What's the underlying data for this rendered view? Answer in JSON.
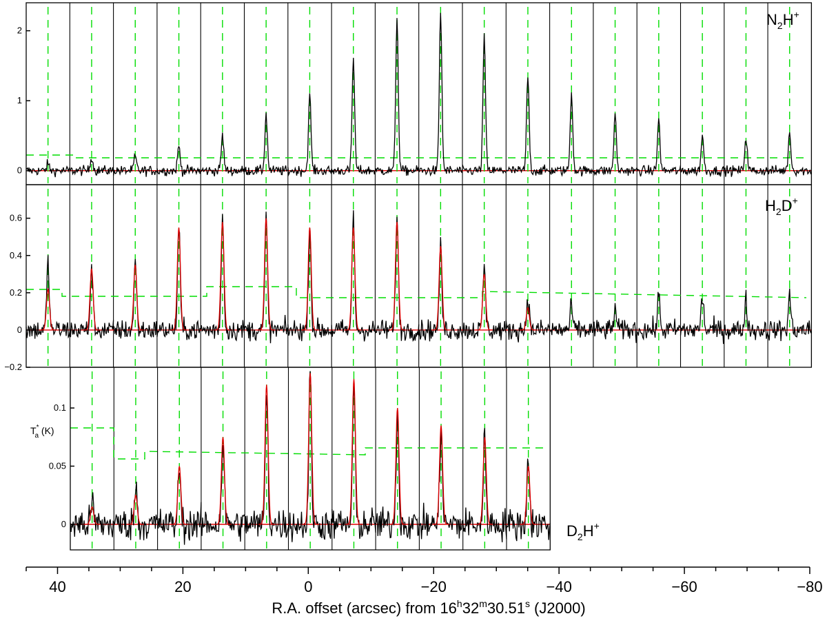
{
  "chart_data": {
    "type": "line",
    "title": "",
    "xlabel": {
      "prefix": "R.A. offset (arcsec) from 16",
      "h": "h",
      "n1": "32",
      "m": "m",
      "n2": "30.51",
      "s": "s",
      "suffix": " (J2000)"
    },
    "xlim": [
      45,
      -80
    ],
    "xticks": [
      40,
      20,
      0,
      -20,
      -40,
      -60,
      -80
    ],
    "xtick_labels": [
      "40",
      "20",
      "0",
      "−20",
      "−40",
      "−60",
      "−80"
    ],
    "ylabel": {
      "base": "T",
      "sup": "*",
      "sub": "a",
      "unit": " (K)"
    },
    "grid": false,
    "panels": [
      {
        "species": {
          "base1": "N",
          "sub1": "2",
          "base2": "H",
          "sup": "+"
        },
        "ylim": [
          -0.2,
          2.4
        ],
        "yticks": [
          0,
          1,
          2
        ],
        "ytick_labels": [
          "0",
          "1",
          "2"
        ],
        "n_cells": 18,
        "peaks": [
          0.1,
          0.2,
          0.2,
          0.35,
          0.5,
          0.8,
          1.07,
          1.6,
          2.2,
          2.25,
          1.9,
          1.35,
          1.1,
          0.78,
          0.72,
          0.5,
          0.48,
          0.55
        ],
        "fit_peaks": [],
        "noise_rms": 0.07,
        "threshold": 0.2
      },
      {
        "species": {
          "base1": "H",
          "sub1": "2",
          "base2": "D",
          "sup": "+"
        },
        "ylim": [
          -0.2,
          0.78
        ],
        "yticks": [
          -0.2,
          0,
          0.2,
          0.4,
          0.6
        ],
        "ytick_labels": [
          "−0.2",
          "0",
          "0.2",
          "0.4",
          "0.6"
        ],
        "n_cells": 18,
        "peaks": [
          0.36,
          0.33,
          0.37,
          0.55,
          0.62,
          0.6,
          0.55,
          0.62,
          0.62,
          0.44,
          0.35,
          0.18,
          0.12,
          0.12,
          0.18,
          0.18,
          0.16,
          0.18
        ],
        "fit_peaks": [
          0.22,
          0.33,
          0.35,
          0.55,
          0.58,
          0.6,
          0.55,
          0.55,
          0.58,
          0.45,
          0.3,
          0.12
        ],
        "noise_rms": 0.055,
        "threshold": 0.2
      },
      {
        "species": {
          "base1": "D",
          "sub1": "2",
          "base2": "H",
          "sup": "+"
        },
        "ylim": [
          -0.022,
          0.135
        ],
        "yticks": [
          0,
          0.05,
          0.1
        ],
        "ytick_labels": [
          "0",
          "0.05",
          "0.1"
        ],
        "n_cells": 11,
        "peaks": [
          0.02,
          0.035,
          0.05,
          0.075,
          0.12,
          0.13,
          0.12,
          0.1,
          0.085,
          0.075,
          0.06
        ],
        "fit_peaks": [
          0.015,
          0.025,
          0.05,
          0.075,
          0.12,
          0.13,
          0.125,
          0.1,
          0.085,
          0.075,
          0.05
        ],
        "noise_rms": 0.014,
        "threshold": 0.06
      }
    ]
  }
}
